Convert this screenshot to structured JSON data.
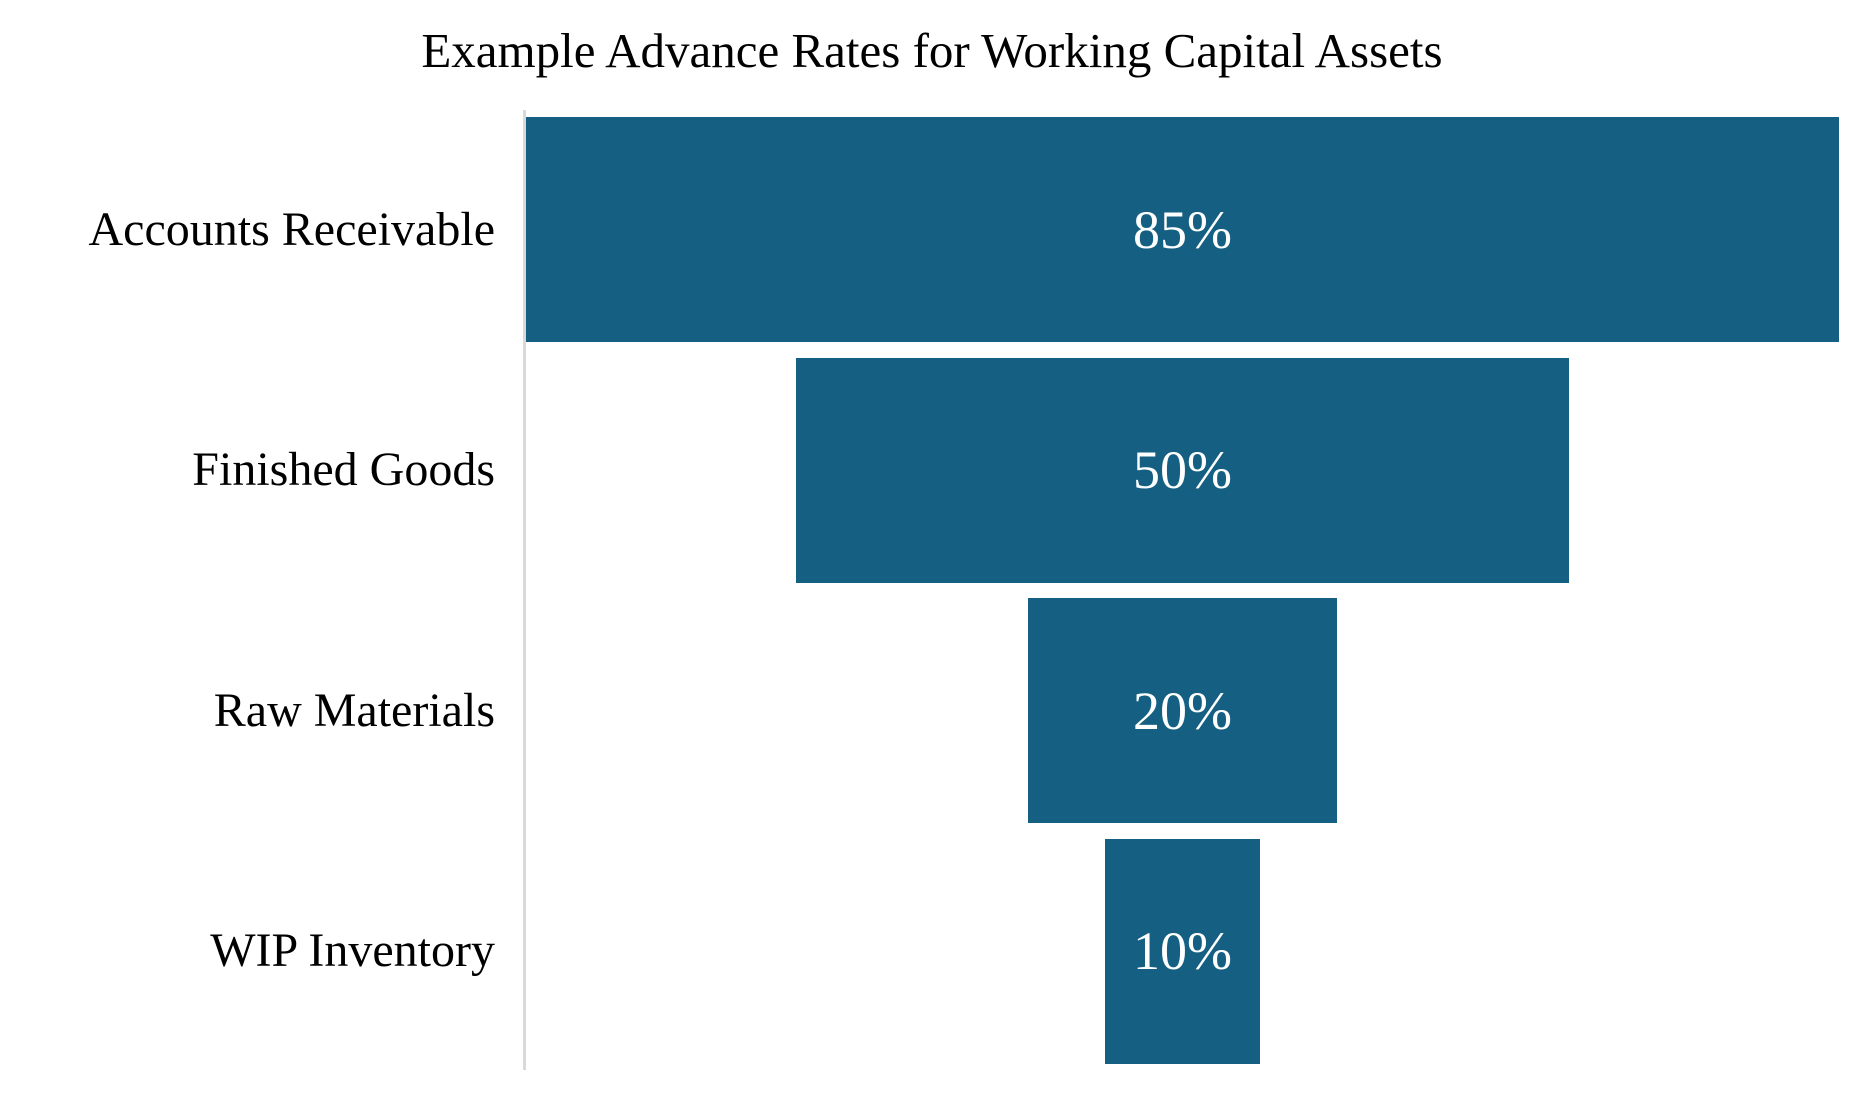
{
  "title": "Example Advance Rates for Working Capital Assets",
  "chart_data": {
    "type": "bar",
    "subtype": "funnel",
    "orientation": "horizontal-centered",
    "title": "Example Advance Rates for Working Capital Assets",
    "categories": [
      "Accounts Receivable",
      "Finished Goods",
      "Raw Materials",
      "WIP Inventory"
    ],
    "values": [
      85,
      50,
      20,
      10
    ],
    "value_labels": [
      "85%",
      "50%",
      "20%",
      "10%"
    ],
    "unit": "%",
    "value_range": [
      0,
      85
    ],
    "grid": false,
    "legend": false,
    "axis": "single vertical category axis line at left of plot",
    "colors": {
      "bar": "#156082",
      "data_label": "#FFFFFF",
      "category_label": "#000000",
      "title": "#000000",
      "axis_line": "#D9D9D9",
      "background": "#FFFFFF"
    }
  }
}
